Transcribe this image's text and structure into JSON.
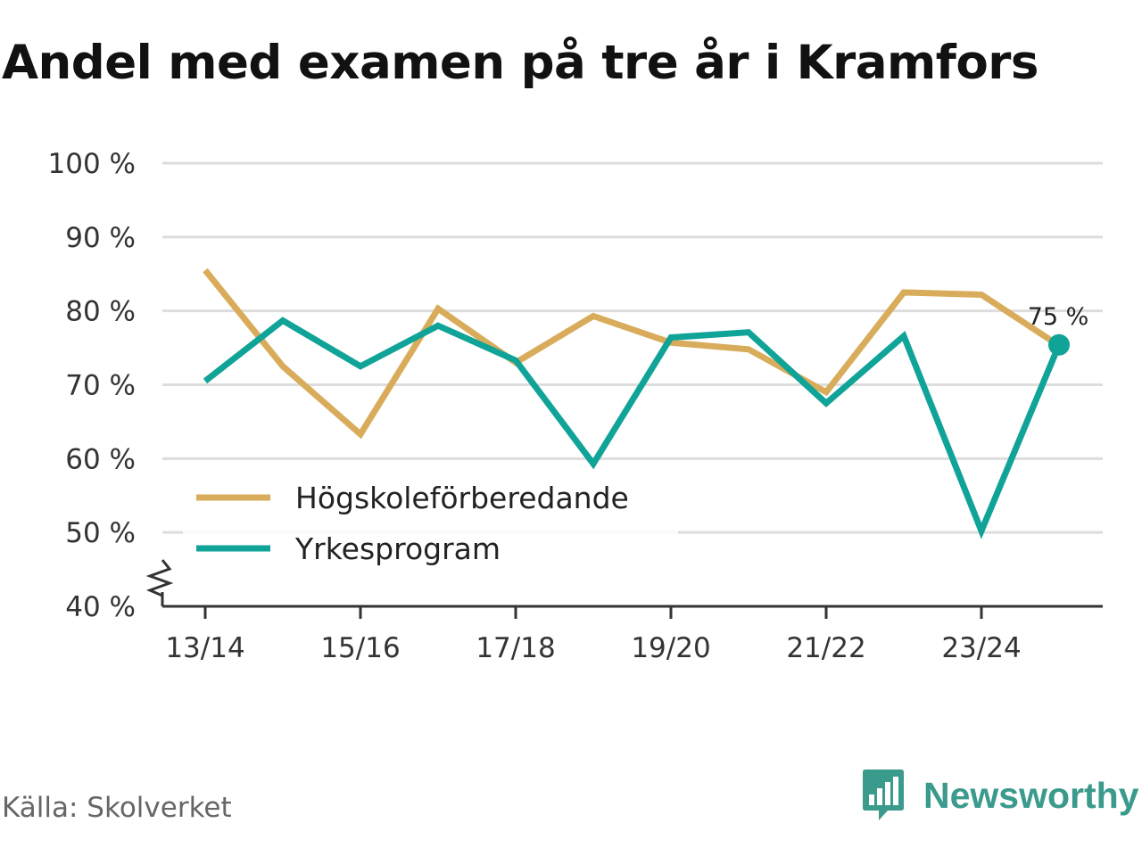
{
  "title": "Andel med examen på tre år i Kramfors",
  "source": "Källa: Skolverket",
  "brand": "Newsworthy",
  "chart_data": {
    "type": "line",
    "title": "Andel med examen på tre år i Kramfors",
    "xlabel": "",
    "ylabel": "",
    "categories": [
      "13/14",
      "14/15",
      "15/16",
      "16/17",
      "17/18",
      "18/19",
      "19/20",
      "20/21",
      "21/22",
      "22/23",
      "23/24",
      "24/25"
    ],
    "x_tick_labels": [
      "13/14",
      "15/16",
      "17/18",
      "19/20",
      "21/22",
      "23/24"
    ],
    "y_ticks": [
      40,
      50,
      60,
      70,
      80,
      90,
      100
    ],
    "y_tick_labels": [
      "40 %",
      "50 %",
      "60 %",
      "70 %",
      "80 %",
      "90 %",
      "100 %"
    ],
    "ylim": [
      40,
      100
    ],
    "y_axis_break": true,
    "grid": true,
    "series": [
      {
        "name": "Högskoleförberedande",
        "color": "#d9ac5b",
        "values": [
          85.5,
          72.5,
          63.3,
          80.3,
          73.0,
          79.3,
          75.7,
          74.8,
          69.0,
          82.5,
          82.2,
          75.3
        ]
      },
      {
        "name": "Yrkesprogram",
        "color": "#10a398",
        "values": [
          70.5,
          78.7,
          72.5,
          78.0,
          73.3,
          59.3,
          76.4,
          77.1,
          67.5,
          76.6,
          50.2,
          75.4
        ]
      }
    ],
    "end_label": "75 %",
    "legend_position": "center-left"
  }
}
